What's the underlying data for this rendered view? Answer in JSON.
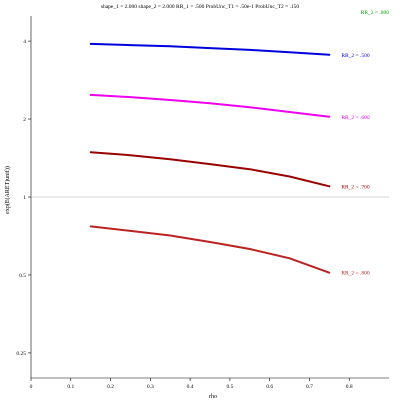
{
  "chart_data": {
    "type": "line",
    "title": "shape_1 = 2.000  shape_2 = 2.000  RR_1 = .500  ProbUnc_T1 = .50e-1  ProbUnc_T2 = .150",
    "xlabel": "rho",
    "ylabel": "exp(E(ARET)unif))",
    "xlim": [
      0,
      0.9
    ],
    "ylim": [
      0.2,
      5.0
    ],
    "yscale": "log",
    "reference_line": 1,
    "grid": false,
    "legend_top": "RR_2 = .800",
    "x_ticks": [
      0,
      0.1,
      0.2,
      0.3,
      0.4,
      0.5,
      0.6,
      0.7,
      0.8
    ],
    "x_tick_labels": [
      "0",
      "0.1",
      "0.2",
      "0.3",
      "0.4",
      "0.5",
      "0.6",
      "0.7",
      "0.8"
    ],
    "y_ticks": [
      4,
      2,
      1,
      0.5,
      0.25
    ],
    "y_tick_labels": [
      "4",
      "2",
      "1",
      "0.5",
      "0.25"
    ],
    "x": [
      0.15,
      0.25,
      0.35,
      0.45,
      0.55,
      0.65,
      0.75
    ],
    "series": [
      {
        "name": "RR_2 = .500",
        "color": "#0000dd",
        "values": [
          3.9,
          3.86,
          3.82,
          3.76,
          3.7,
          3.62,
          3.54
        ]
      },
      {
        "name": "RR_2 = .600",
        "color": "#ee00ee",
        "values": [
          2.48,
          2.43,
          2.37,
          2.3,
          2.22,
          2.13,
          2.04
        ]
      },
      {
        "name": "RR_2 = .700",
        "color": "#990000",
        "values": [
          1.49,
          1.45,
          1.4,
          1.34,
          1.28,
          1.2,
          1.1
        ]
      },
      {
        "name": "RR_2 = .800",
        "color": "#bb2222",
        "values": [
          0.77,
          0.74,
          0.71,
          0.67,
          0.63,
          0.58,
          0.51
        ]
      }
    ],
    "legend_top_color": "#00aa00"
  }
}
